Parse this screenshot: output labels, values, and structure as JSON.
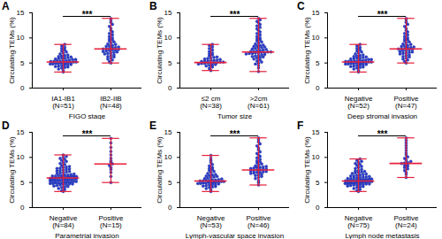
{
  "chart_data": [
    {
      "type": "scatter",
      "title": "A",
      "xlabel": "FIGO stage",
      "ylabel": "Circulating TEMs (%)",
      "color": "#2a3fd0",
      "categories": [
        "IA1-IB1\n(N=51)",
        "IB2-IIB\n(N=48)"
      ],
      "ylim": [
        0,
        15
      ],
      "yticks": [
        0,
        5,
        10,
        15
      ],
      "annotation": "***",
      "center": [
        5.2,
        7.8
      ],
      "error_low": [
        3.2,
        5.0
      ],
      "error_high": [
        8.7,
        13.9
      ],
      "values": [
        [
          3.2,
          3.5,
          3.8,
          4.0,
          4.1,
          4.2,
          4.3,
          4.4,
          4.5,
          4.6,
          4.6,
          4.7,
          4.8,
          4.8,
          4.9,
          4.9,
          5.0,
          5.0,
          5.1,
          5.1,
          5.2,
          5.2,
          5.3,
          5.3,
          5.4,
          5.4,
          5.5,
          5.5,
          5.6,
          5.7,
          5.7,
          5.8,
          5.9,
          6.0,
          6.0,
          6.1,
          6.2,
          6.3,
          6.4,
          6.5,
          6.6,
          6.8,
          7.0,
          7.2,
          7.4,
          7.6,
          7.9,
          8.1,
          8.4,
          8.7,
          5.0
        ],
        [
          5.0,
          5.3,
          5.6,
          5.8,
          6.0,
          6.2,
          6.3,
          6.5,
          6.6,
          6.8,
          6.9,
          7.0,
          7.1,
          7.2,
          7.3,
          7.4,
          7.5,
          7.6,
          7.7,
          7.8,
          7.8,
          7.9,
          8.0,
          8.1,
          8.2,
          8.3,
          8.4,
          8.5,
          8.7,
          8.8,
          9.0,
          9.2,
          9.4,
          9.6,
          9.8,
          10.0,
          10.3,
          10.6,
          10.9,
          11.2,
          11.5,
          11.9,
          12.3,
          12.7,
          13.1,
          13.5,
          13.9,
          7.6
        ]
      ]
    },
    {
      "type": "scatter",
      "title": "B",
      "xlabel": "Tumor size",
      "ylabel": "Circulating TEMs (%)",
      "color": "#2a3fd0",
      "categories": [
        "≤2 cm\n(N=38)",
        ">2cm\n(N=61)"
      ],
      "ylim": [
        0,
        15
      ],
      "yticks": [
        0,
        5,
        10,
        15
      ],
      "annotation": "***",
      "center": [
        5.1,
        7.2
      ],
      "error_low": [
        3.5,
        3.3
      ],
      "error_high": [
        8.7,
        13.9
      ],
      "values": [
        [
          3.5,
          3.9,
          4.2,
          4.4,
          4.5,
          4.6,
          4.7,
          4.8,
          4.9,
          4.9,
          5.0,
          5.0,
          5.1,
          5.1,
          5.2,
          5.2,
          5.3,
          5.3,
          5.4,
          5.5,
          5.5,
          5.6,
          5.7,
          5.8,
          5.9,
          6.0,
          6.1,
          6.2,
          6.4,
          6.6,
          6.8,
          7.0,
          7.3,
          7.6,
          7.9,
          8.2,
          8.5,
          8.7
        ],
        [
          3.3,
          4.0,
          4.5,
          4.8,
          5.0,
          5.2,
          5.4,
          5.6,
          5.8,
          6.0,
          6.1,
          6.2,
          6.3,
          6.4,
          6.5,
          6.6,
          6.7,
          6.8,
          6.9,
          7.0,
          7.0,
          7.1,
          7.1,
          7.2,
          7.2,
          7.3,
          7.3,
          7.4,
          7.5,
          7.6,
          7.7,
          7.8,
          7.9,
          8.0,
          8.1,
          8.2,
          8.3,
          8.4,
          8.5,
          8.6,
          8.8,
          9.0,
          9.2,
          9.4,
          9.6,
          9.8,
          10.0,
          10.3,
          10.6,
          10.9,
          11.2,
          11.5,
          11.8,
          12.1,
          12.4,
          12.7,
          13.0,
          13.3,
          13.6,
          13.9,
          6.9
        ]
      ]
    },
    {
      "type": "scatter",
      "title": "C",
      "xlabel": "Deep stromal invasion",
      "ylabel": "Circulating TEMs (%)",
      "color": "#2a3fd0",
      "categories": [
        "Negative\n(N=52)",
        "Positive\n(N=47)"
      ],
      "ylim": [
        0,
        15
      ],
      "yticks": [
        0,
        5,
        10,
        15
      ],
      "annotation": "***",
      "center": [
        5.2,
        7.8
      ],
      "error_low": [
        3.2,
        5.0
      ],
      "error_high": [
        8.7,
        13.9
      ],
      "values": [
        [
          3.2,
          3.5,
          3.8,
          4.0,
          4.1,
          4.2,
          4.3,
          4.4,
          4.5,
          4.6,
          4.6,
          4.7,
          4.8,
          4.8,
          4.9,
          4.9,
          5.0,
          5.0,
          5.1,
          5.1,
          5.2,
          5.2,
          5.3,
          5.3,
          5.4,
          5.4,
          5.5,
          5.5,
          5.6,
          5.7,
          5.7,
          5.8,
          5.9,
          6.0,
          6.0,
          6.1,
          6.2,
          6.3,
          6.4,
          6.5,
          6.6,
          6.8,
          7.0,
          7.2,
          7.4,
          7.6,
          7.9,
          8.1,
          8.4,
          8.7,
          5.0,
          5.3
        ],
        [
          5.0,
          5.3,
          5.6,
          5.8,
          6.0,
          6.2,
          6.3,
          6.5,
          6.6,
          6.8,
          6.9,
          7.0,
          7.1,
          7.2,
          7.3,
          7.4,
          7.5,
          7.6,
          7.7,
          7.8,
          7.8,
          7.9,
          8.0,
          8.1,
          8.2,
          8.3,
          8.4,
          8.5,
          8.7,
          8.8,
          9.0,
          9.2,
          9.4,
          9.6,
          9.8,
          10.0,
          10.3,
          10.6,
          10.9,
          11.2,
          11.5,
          11.9,
          12.3,
          12.7,
          13.1,
          13.5,
          13.9
        ]
      ]
    },
    {
      "type": "scatter",
      "title": "D",
      "xlabel": "Parametrial invasion",
      "ylabel": "Circulating TEMs (%)",
      "color": "#2a3fd0",
      "categories": [
        "Negative\n(N=84)",
        "Positive\n(N=15)"
      ],
      "ylim": [
        0,
        15
      ],
      "yticks": [
        0,
        5,
        10,
        15
      ],
      "annotation": "***",
      "center": [
        5.9,
        8.7
      ],
      "error_low": [
        3.2,
        5.0
      ],
      "error_high": [
        10.5,
        13.8
      ],
      "values": [
        [
          3.2,
          3.4,
          3.6,
          3.8,
          4.0,
          4.1,
          4.2,
          4.3,
          4.4,
          4.5,
          4.6,
          4.6,
          4.7,
          4.7,
          4.8,
          4.8,
          4.9,
          4.9,
          5.0,
          5.0,
          5.1,
          5.1,
          5.2,
          5.2,
          5.3,
          5.3,
          5.4,
          5.4,
          5.5,
          5.5,
          5.6,
          5.6,
          5.7,
          5.7,
          5.8,
          5.8,
          5.9,
          5.9,
          6.0,
          6.0,
          6.1,
          6.1,
          6.2,
          6.2,
          6.3,
          6.3,
          6.4,
          6.4,
          6.5,
          6.5,
          6.6,
          6.7,
          6.8,
          6.9,
          7.0,
          7.1,
          7.2,
          7.3,
          7.4,
          7.5,
          7.6,
          7.7,
          7.8,
          7.9,
          8.0,
          8.1,
          8.2,
          8.4,
          8.6,
          8.8,
          9.0,
          9.2,
          9.4,
          9.6,
          9.8,
          10.0,
          10.2,
          10.5,
          5.5,
          5.8,
          6.0,
          6.2,
          4.9,
          5.3
        ],
        [
          5.0,
          6.2,
          7.0,
          7.6,
          8.0,
          8.4,
          8.7,
          9.0,
          9.3,
          9.8,
          10.5,
          11.2,
          12.0,
          12.9,
          13.8
        ]
      ]
    },
    {
      "type": "scatter",
      "title": "E",
      "xlabel": "Lymph-vascular space invasion",
      "ylabel": "Circulating TEMs (%)",
      "color": "#2a3fd0",
      "categories": [
        "Negative\n(N=53)",
        "Positive\n(N=46)"
      ],
      "ylim": [
        0,
        15
      ],
      "yticks": [
        0,
        5,
        10,
        15
      ],
      "annotation": "***",
      "center": [
        5.3,
        7.5
      ],
      "error_low": [
        3.2,
        4.5
      ],
      "error_high": [
        10.4,
        13.9
      ],
      "values": [
        [
          3.2,
          3.5,
          3.8,
          4.0,
          4.1,
          4.2,
          4.3,
          4.4,
          4.5,
          4.6,
          4.6,
          4.7,
          4.8,
          4.8,
          4.9,
          4.9,
          5.0,
          5.0,
          5.1,
          5.1,
          5.2,
          5.2,
          5.3,
          5.3,
          5.4,
          5.4,
          5.5,
          5.5,
          5.6,
          5.7,
          5.8,
          5.9,
          6.0,
          6.1,
          6.2,
          6.3,
          6.4,
          6.5,
          6.6,
          6.8,
          7.0,
          7.2,
          7.4,
          7.6,
          7.8,
          8.0,
          8.3,
          8.6,
          9.0,
          9.4,
          9.8,
          10.4,
          5.0
        ],
        [
          4.5,
          5.0,
          5.4,
          5.8,
          6.0,
          6.2,
          6.4,
          6.5,
          6.6,
          6.8,
          6.9,
          7.0,
          7.1,
          7.2,
          7.3,
          7.4,
          7.5,
          7.6,
          7.7,
          7.8,
          7.9,
          8.0,
          8.1,
          8.2,
          8.3,
          8.5,
          8.7,
          8.9,
          9.1,
          9.3,
          9.6,
          9.9,
          10.2,
          10.5,
          10.8,
          11.1,
          11.5,
          11.9,
          12.3,
          12.7,
          13.1,
          13.5,
          13.9,
          7.5,
          7.0,
          8.0
        ]
      ]
    },
    {
      "type": "scatter",
      "title": "F",
      "xlabel": "Lymph node metastasis",
      "ylabel": "Circulating TEMs (%)",
      "color": "#2a3fd0",
      "categories": [
        "Negative\n(N=75)",
        "Positive\n(N=24)"
      ],
      "ylim": [
        0,
        15
      ],
      "yticks": [
        0,
        5,
        10,
        15
      ],
      "annotation": "***",
      "center": [
        5.3,
        8.8
      ],
      "error_low": [
        3.2,
        6.0
      ],
      "error_high": [
        9.7,
        13.9
      ],
      "values": [
        [
          3.2,
          3.4,
          3.6,
          3.8,
          4.0,
          4.1,
          4.2,
          4.3,
          4.4,
          4.5,
          4.6,
          4.6,
          4.7,
          4.7,
          4.8,
          4.8,
          4.9,
          4.9,
          5.0,
          5.0,
          5.1,
          5.1,
          5.2,
          5.2,
          5.3,
          5.3,
          5.4,
          5.4,
          5.5,
          5.5,
          5.6,
          5.6,
          5.7,
          5.7,
          5.8,
          5.8,
          5.9,
          6.0,
          6.1,
          6.2,
          6.3,
          6.4,
          6.5,
          6.6,
          6.7,
          6.8,
          6.9,
          7.0,
          7.1,
          7.2,
          7.3,
          7.4,
          7.6,
          7.8,
          8.0,
          8.2,
          8.4,
          8.6,
          8.8,
          9.0,
          9.2,
          9.4,
          9.7,
          5.0,
          5.2,
          5.4,
          4.8,
          5.6,
          5.9,
          6.1,
          4.5,
          5.3,
          5.1,
          6.3,
          4.9
        ],
        [
          6.0,
          6.6,
          7.0,
          7.4,
          7.7,
          8.0,
          8.2,
          8.4,
          8.6,
          8.8,
          9.0,
          9.2,
          9.5,
          9.8,
          10.1,
          10.5,
          10.9,
          11.4,
          11.9,
          12.4,
          12.9,
          13.4,
          13.9,
          8.9
        ]
      ]
    }
  ]
}
